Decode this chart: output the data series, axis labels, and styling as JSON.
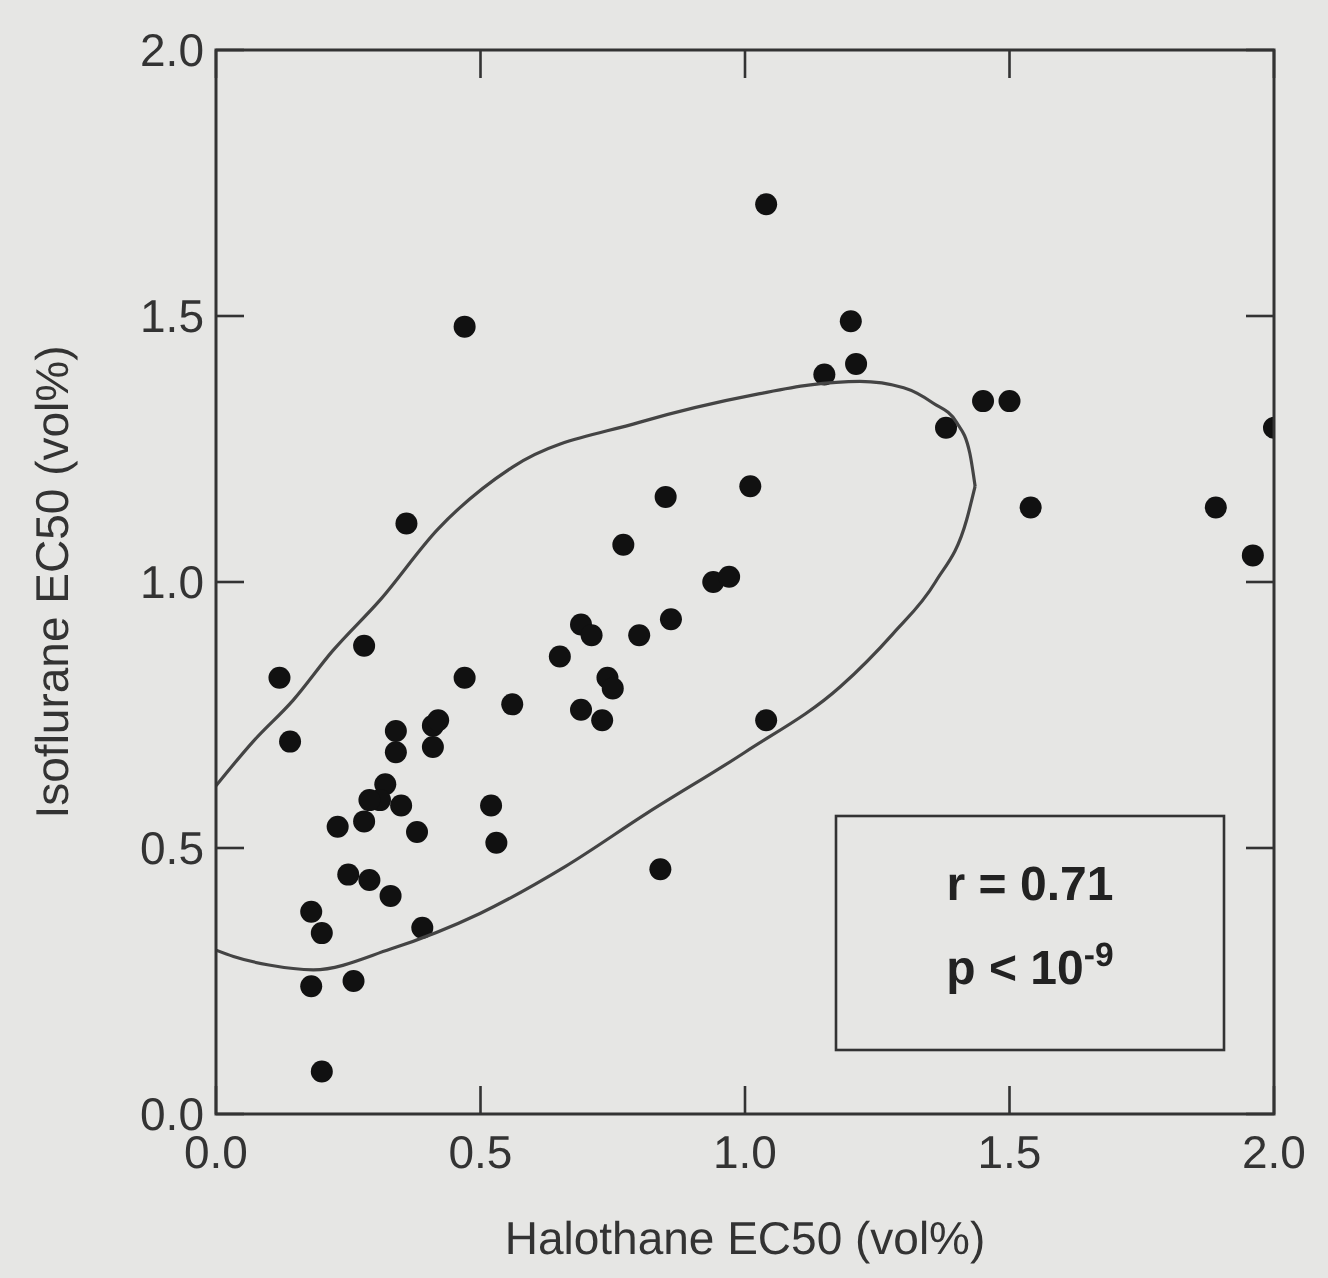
{
  "chart_data": {
    "type": "scatter",
    "xlabel": "Halothane EC50 (vol%)",
    "ylabel": "Isoflurane EC50 (vol%)",
    "xlim": [
      0,
      2
    ],
    "ylim": [
      0,
      2
    ],
    "xticks": [
      {
        "value": 0,
        "label": "0.0"
      },
      {
        "value": 0.5,
        "label": "0.5"
      },
      {
        "value": 1,
        "label": "1.0"
      },
      {
        "value": 1.5,
        "label": "1.5"
      },
      {
        "value": 2,
        "label": "2.0"
      }
    ],
    "yticks": [
      {
        "value": 0,
        "label": "0.0"
      },
      {
        "value": 0.5,
        "label": "0.5"
      },
      {
        "value": 1,
        "label": "1.0"
      },
      {
        "value": 1.5,
        "label": "1.5"
      },
      {
        "value": 2,
        "label": "2.0"
      }
    ],
    "grid": false,
    "marker": "circle",
    "annotations": [
      "r = 0.71",
      "p < 10$^{-9}$"
    ],
    "series": [
      {
        "type": "scatter",
        "color": "#111111",
        "x": [
          0.47,
          0.36,
          0.85,
          1.01,
          0.77,
          0.94,
          0.97,
          0.69,
          0.71,
          0.8,
          0.86,
          0.28,
          0.12,
          0.47,
          0.65,
          0.56,
          0.74,
          0.75,
          0.69,
          0.73,
          1.04,
          0.14,
          0.34,
          0.34,
          0.41,
          0.42,
          0.41,
          0.32,
          0.31,
          0.29,
          0.28,
          0.35,
          0.23,
          0.38,
          0.52,
          0.53,
          0.25,
          0.29,
          0.33,
          0.84,
          0.18,
          0.2,
          0.39,
          0.18,
          0.26,
          0.2,
          1.04,
          1.2,
          1.21,
          1.15,
          1.45,
          1.5,
          1.38,
          2.0,
          1.54,
          1.89,
          1.96
        ],
        "values": [
          1.48,
          1.11,
          1.16,
          1.18,
          1.07,
          1.0,
          1.01,
          0.92,
          0.9,
          0.9,
          0.93,
          0.88,
          0.82,
          0.82,
          0.86,
          0.77,
          0.82,
          0.8,
          0.76,
          0.74,
          0.74,
          0.7,
          0.72,
          0.68,
          0.73,
          0.74,
          0.69,
          0.62,
          0.59,
          0.59,
          0.55,
          0.58,
          0.54,
          0.53,
          0.58,
          0.51,
          0.45,
          0.44,
          0.41,
          0.46,
          0.38,
          0.34,
          0.35,
          0.24,
          0.25,
          0.08,
          1.71,
          1.49,
          1.41,
          1.39,
          1.34,
          1.34,
          1.29,
          1.29,
          1.14,
          1.14,
          1.05
        ]
      },
      {
        "type": "line",
        "color": "#444444",
        "marker": "none",
        "line_style": "solid",
        "x": [
          0,
          0.07,
          0.146,
          0.22,
          0.31,
          0.42,
          0.562,
          0.8,
          1.028,
          1.12,
          1.217,
          1.3,
          1.356,
          1.4,
          1.425,
          1.435
        ],
        "values": [
          0.617,
          0.7,
          0.778,
          0.87,
          0.966,
          1.1,
          1.217,
          1.3,
          1.354,
          1.37,
          1.377,
          1.365,
          1.336,
          1.3,
          1.242,
          1.18
        ]
      },
      {
        "type": "line",
        "color": "#444444",
        "marker": "none",
        "line_style": "solid",
        "x": [
          0,
          0.033,
          0.1,
          0.184,
          0.33,
          0.499,
          0.66,
          0.814,
          1.0,
          1.18,
          1.28,
          1.36,
          1.419,
          1.435
        ],
        "values": [
          0.308,
          0.296,
          0.28,
          0.271,
          0.31,
          0.377,
          0.465,
          0.565,
          0.68,
          0.803,
          0.903,
          1.0,
          1.117,
          1.18
        ]
      }
    ]
  }
}
